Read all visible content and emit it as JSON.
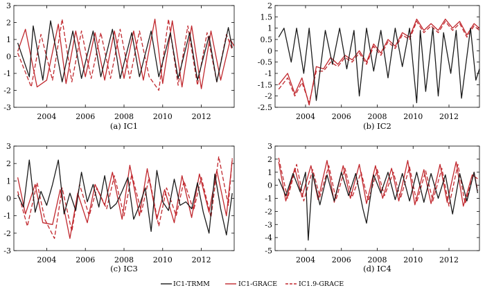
{
  "chart_data": [
    {
      "type": "line",
      "caption": "(a) IC1",
      "ylim": [
        -3,
        3
      ],
      "yticks": [
        -3,
        -2,
        -1,
        0,
        1,
        2,
        3
      ],
      "xlim": [
        2002.3,
        2013.7
      ],
      "xticks": [
        2004,
        2006,
        2008,
        2010,
        2012
      ],
      "series": [
        {
          "name": "IC1-TRMM",
          "color": "#1a1a1a",
          "dash": "solid",
          "x": [
            2002.5,
            2003.1,
            2003.3,
            2003.8,
            2004.2,
            2004.35,
            2004.8,
            2005.35,
            2005.8,
            2006.4,
            2006.8,
            2007.4,
            2007.8,
            2008.4,
            2008.8,
            2009.4,
            2009.8,
            2010.4,
            2010.8,
            2011.4,
            2011.8,
            2012.4,
            2012.8,
            2013.4,
            2013.6
          ],
          "y": [
            0.8,
            -1.2,
            1.8,
            -1.4,
            2.1,
            1.2,
            -1.5,
            1.5,
            -1.3,
            1.5,
            -1.2,
            1.6,
            -1.3,
            1.4,
            -1.2,
            1.5,
            -1.2,
            1.4,
            -1.3,
            1.4,
            -1.4,
            1.2,
            -1.5,
            1.7,
            0.5
          ]
        },
        {
          "name": "IC1-GRACE",
          "color": "#c0272d",
          "dash": "solid",
          "x": [
            2002.5,
            2002.9,
            2003.5,
            2004.0,
            2004.6,
            2005.0,
            2005.5,
            2006.0,
            2006.5,
            2007.0,
            2007.5,
            2008.0,
            2008.5,
            2009.0,
            2009.6,
            2010.0,
            2010.5,
            2011.0,
            2011.5,
            2012.0,
            2012.5,
            2013.0,
            2013.5,
            2013.7
          ],
          "y": [
            0.3,
            1.6,
            -1.8,
            -1.4,
            1.9,
            -1.6,
            1.5,
            -1.2,
            1.4,
            -1.4,
            1.5,
            -1.3,
            1.5,
            -1.4,
            2.2,
            -1.6,
            2.1,
            -1.8,
            1.8,
            -1.9,
            1.5,
            -1.4,
            1.0,
            0.6
          ]
        },
        {
          "name": "IC1.9-GRACE",
          "color": "#c0272d",
          "dash": "6,3",
          "x": [
            2002.5,
            2003.2,
            2003.7,
            2004.3,
            2004.8,
            2005.3,
            2005.8,
            2006.3,
            2006.8,
            2007.3,
            2007.8,
            2008.3,
            2008.8,
            2009.3,
            2009.8,
            2010.3,
            2010.8,
            2011.3,
            2011.8,
            2012.3,
            2012.8,
            2013.3,
            2013.6
          ],
          "y": [
            0.2,
            -1.8,
            1.3,
            -1.4,
            2.2,
            -1.5,
            1.5,
            -1.3,
            1.4,
            -1.3,
            1.6,
            -1.3,
            1.5,
            -1.2,
            -2.0,
            2.2,
            -1.7,
            1.8,
            -1.7,
            1.4,
            -1.5,
            1.3,
            0.4
          ]
        }
      ]
    },
    {
      "type": "line",
      "caption": "(b) IC2",
      "ylim": [
        -2.5,
        2
      ],
      "yticks": [
        -2.5,
        -2,
        -1.5,
        -1,
        -0.5,
        0,
        0.5,
        1,
        1.5,
        2
      ],
      "xlim": [
        2002.3,
        2013.7
      ],
      "xticks": [
        2004,
        2006,
        2008,
        2010,
        2012
      ],
      "series": [
        {
          "name": "IC1-TRMM",
          "color": "#1a1a1a",
          "dash": "solid",
          "x": [
            2002.5,
            2002.8,
            2003.2,
            2003.5,
            2003.9,
            2004.2,
            2004.6,
            2005.1,
            2005.5,
            2005.9,
            2006.3,
            2006.7,
            2007.0,
            2007.4,
            2007.8,
            2008.2,
            2008.6,
            2009.0,
            2009.4,
            2009.8,
            2010.2,
            2010.4,
            2010.7,
            2011.1,
            2011.4,
            2011.7,
            2012.1,
            2012.4,
            2012.7,
            2013.2,
            2013.5,
            2013.7
          ],
          "y": [
            0.6,
            1.0,
            -0.5,
            1.0,
            -1.0,
            1.0,
            -2.2,
            0.9,
            -0.6,
            1.0,
            -0.8,
            0.9,
            -2.0,
            1.0,
            -0.9,
            0.9,
            -1.2,
            1.0,
            -0.7,
            1.0,
            -2.3,
            0.9,
            -1.8,
            1.0,
            -2.0,
            0.8,
            -1.0,
            0.9,
            -2.1,
            1.0,
            -1.3,
            -0.8
          ]
        },
        {
          "name": "IC1-GRACE",
          "color": "#c0272d",
          "dash": "solid",
          "x": [
            2002.5,
            2003.0,
            2003.4,
            2003.8,
            2004.2,
            2004.6,
            2005.0,
            2005.4,
            2005.8,
            2006.2,
            2006.6,
            2007.0,
            2007.4,
            2007.8,
            2008.2,
            2008.6,
            2009.0,
            2009.4,
            2009.8,
            2010.2,
            2010.6,
            2011.0,
            2011.4,
            2011.8,
            2012.2,
            2012.6,
            2013.0,
            2013.4,
            2013.7
          ],
          "y": [
            -1.5,
            -1.0,
            -1.9,
            -1.2,
            -2.4,
            -0.7,
            -0.8,
            -0.3,
            -0.6,
            -0.2,
            -0.4,
            0.0,
            -0.5,
            0.3,
            -0.1,
            0.5,
            0.2,
            0.8,
            0.6,
            1.4,
            0.9,
            1.2,
            0.9,
            1.4,
            1.0,
            1.3,
            0.7,
            1.2,
            1.0
          ]
        },
        {
          "name": "IC1.9-GRACE",
          "color": "#c0272d",
          "dash": "6,3",
          "x": [
            2002.5,
            2003.0,
            2003.4,
            2003.8,
            2004.2,
            2004.6,
            2005.0,
            2005.4,
            2005.8,
            2006.2,
            2006.6,
            2007.0,
            2007.4,
            2007.8,
            2008.2,
            2008.6,
            2009.0,
            2009.4,
            2009.8,
            2010.2,
            2010.6,
            2011.0,
            2011.4,
            2011.8,
            2012.2,
            2012.6,
            2013.0,
            2013.4,
            2013.7
          ],
          "y": [
            -1.7,
            -1.2,
            -2.0,
            -1.4,
            -2.3,
            -0.9,
            -0.9,
            -0.5,
            -0.7,
            -0.3,
            -0.5,
            -0.1,
            -0.6,
            0.2,
            -0.2,
            0.4,
            0.1,
            0.7,
            0.5,
            1.3,
            0.8,
            1.1,
            0.8,
            1.3,
            0.9,
            1.2,
            0.6,
            1.1,
            0.9
          ]
        }
      ]
    },
    {
      "type": "line",
      "caption": "(c) IC3",
      "ylim": [
        -3,
        3
      ],
      "yticks": [
        -3,
        -2,
        -1,
        0,
        1,
        2,
        3
      ],
      "xlim": [
        2002.3,
        2013.7
      ],
      "xticks": [
        2004,
        2006,
        2008,
        2010,
        2012
      ],
      "series": [
        {
          "name": "IC1-TRMM",
          "color": "#1a1a1a",
          "dash": "solid",
          "x": [
            2002.5,
            2002.8,
            2003.1,
            2003.4,
            2003.7,
            2004.0,
            2004.3,
            2004.6,
            2004.9,
            2005.2,
            2005.5,
            2005.8,
            2006.1,
            2006.4,
            2006.7,
            2007.0,
            2007.3,
            2007.6,
            2007.9,
            2008.2,
            2008.5,
            2008.8,
            2009.1,
            2009.4,
            2009.7,
            2010.0,
            2010.3,
            2010.6,
            2010.9,
            2011.2,
            2011.5,
            2011.8,
            2012.1,
            2012.4,
            2012.7,
            2013.0,
            2013.3,
            2013.6
          ],
          "y": [
            0.2,
            -0.5,
            2.2,
            -0.8,
            0.4,
            -0.4,
            0.8,
            2.2,
            -0.9,
            0.3,
            -0.7,
            1.5,
            -0.2,
            0.8,
            -0.5,
            1.3,
            -0.6,
            -0.3,
            0.4,
            1.2,
            -1.2,
            -0.4,
            0.6,
            -1.9,
            1.6,
            -0.2,
            -0.7,
            1.1,
            -0.4,
            -0.2,
            -0.6,
            0.9,
            -0.8,
            -2.0,
            1.4,
            -0.6,
            -2.1,
            0.3
          ]
        },
        {
          "name": "IC1-GRACE",
          "color": "#c0272d",
          "dash": "solid",
          "x": [
            2002.5,
            2002.9,
            2003.4,
            2003.8,
            2004.3,
            2004.7,
            2005.2,
            2005.6,
            2006.1,
            2006.5,
            2007.0,
            2007.4,
            2007.9,
            2008.3,
            2008.8,
            2009.2,
            2009.7,
            2010.1,
            2010.6,
            2011.0,
            2011.5,
            2011.9,
            2012.4,
            2012.8,
            2013.3,
            2013.6
          ],
          "y": [
            1.2,
            -0.9,
            0.8,
            -1.4,
            -1.5,
            0.5,
            -2.3,
            0.3,
            -1.4,
            0.8,
            -0.4,
            1.5,
            -1.2,
            1.9,
            -1.0,
            1.7,
            -1.2,
            0.5,
            -1.4,
            1.3,
            -1.1,
            1.4,
            -0.8,
            1.6,
            -1.0,
            2.2
          ]
        },
        {
          "name": "IC1.9-GRACE",
          "color": "#c0272d",
          "dash": "6,3",
          "x": [
            2002.5,
            2003.0,
            2003.5,
            2003.9,
            2004.4,
            2004.8,
            2005.3,
            2005.7,
            2006.2,
            2006.6,
            2007.1,
            2007.5,
            2008.0,
            2008.4,
            2008.9,
            2009.3,
            2009.8,
            2010.2,
            2010.7,
            2011.1,
            2011.6,
            2012.0,
            2012.5,
            2012.9,
            2013.4,
            2013.6
          ],
          "y": [
            0.4,
            -1.6,
            0.9,
            -1.2,
            -2.3,
            0.6,
            -1.9,
            0.8,
            -1.0,
            0.6,
            -0.6,
            1.3,
            -1.0,
            1.4,
            -0.8,
            1.2,
            -1.6,
            0.6,
            -1.0,
            1.0,
            -0.7,
            1.2,
            -1.1,
            2.4,
            -0.4,
            2.3
          ]
        }
      ]
    },
    {
      "type": "line",
      "caption": "(d) IC4",
      "ylim": [
        -5,
        3
      ],
      "yticks": [
        -5,
        -4,
        -3,
        -2,
        -1,
        0,
        1,
        2,
        3
      ],
      "xlim": [
        2002.3,
        2013.7
      ],
      "xticks": [
        2004,
        2006,
        2008,
        2010,
        2012
      ],
      "series": [
        {
          "name": "IC1-TRMM",
          "color": "#1a1a1a",
          "dash": "solid",
          "x": [
            2002.5,
            2002.9,
            2003.3,
            2003.7,
            2004.0,
            2004.15,
            2004.4,
            2004.8,
            2005.2,
            2005.6,
            2006.0,
            2006.4,
            2006.8,
            2007.2,
            2007.4,
            2007.8,
            2008.2,
            2008.6,
            2009.0,
            2009.4,
            2009.8,
            2010.2,
            2010.6,
            2011.0,
            2011.4,
            2011.8,
            2012.2,
            2012.6,
            2013.0,
            2013.4,
            2013.6
          ],
          "y": [
            0.5,
            -0.8,
            0.9,
            -0.5,
            1.0,
            -4.2,
            0.9,
            -1.5,
            0.8,
            -1.2,
            1.0,
            -0.8,
            0.9,
            -1.8,
            -2.9,
            0.8,
            -0.6,
            1.0,
            -1.1,
            0.9,
            -1.2,
            1.0,
            -1.3,
            0.9,
            -1.0,
            0.8,
            -2.2,
            0.9,
            -1.2,
            1.0,
            -0.6
          ]
        },
        {
          "name": "IC1-GRACE",
          "color": "#c0272d",
          "dash": "solid",
          "x": [
            2002.5,
            2002.9,
            2003.4,
            2003.8,
            2004.3,
            2004.7,
            2005.2,
            2005.6,
            2006.1,
            2006.5,
            2007.0,
            2007.4,
            2007.9,
            2008.3,
            2008.8,
            2009.2,
            2009.7,
            2010.1,
            2010.6,
            2011.0,
            2011.5,
            2011.9,
            2012.4,
            2012.8,
            2013.3,
            2013.6
          ],
          "y": [
            1.8,
            -1.2,
            1.3,
            -0.9,
            1.5,
            -1.1,
            1.9,
            -1.3,
            1.5,
            -1.0,
            1.6,
            -1.4,
            1.5,
            -1.0,
            1.3,
            -1.2,
            1.9,
            -1.5,
            1.2,
            -1.4,
            1.6,
            -1.3,
            1.8,
            -1.6,
            0.8,
            0.5
          ]
        },
        {
          "name": "IC1.9-GRACE",
          "color": "#c0272d",
          "dash": "6,3",
          "x": [
            2002.5,
            2003.0,
            2003.5,
            2003.9,
            2004.4,
            2004.8,
            2005.3,
            2005.7,
            2006.2,
            2006.6,
            2007.1,
            2007.5,
            2008.0,
            2008.4,
            2008.9,
            2009.3,
            2009.8,
            2010.2,
            2010.7,
            2011.1,
            2011.6,
            2012.0,
            2012.5,
            2012.9,
            2013.4,
            2013.6
          ],
          "y": [
            2.1,
            -1.0,
            1.6,
            -1.2,
            1.2,
            -0.9,
            1.5,
            -1.1,
            1.3,
            -0.9,
            1.0,
            -1.2,
            1.2,
            -0.8,
            1.0,
            -1.0,
            1.4,
            -1.3,
            1.1,
            -1.2,
            1.3,
            -1.6,
            1.6,
            -1.4,
            1.0,
            -0.4
          ]
        }
      ]
    }
  ],
  "legend": [
    {
      "label": "IC1-TRMM",
      "color": "#1a1a1a",
      "dash": "solid"
    },
    {
      "label": "IC1-GRACE",
      "color": "#c0272d",
      "dash": "solid"
    },
    {
      "label": "IC1.9-GRACE",
      "color": "#c0272d",
      "dash": "6,3"
    }
  ]
}
